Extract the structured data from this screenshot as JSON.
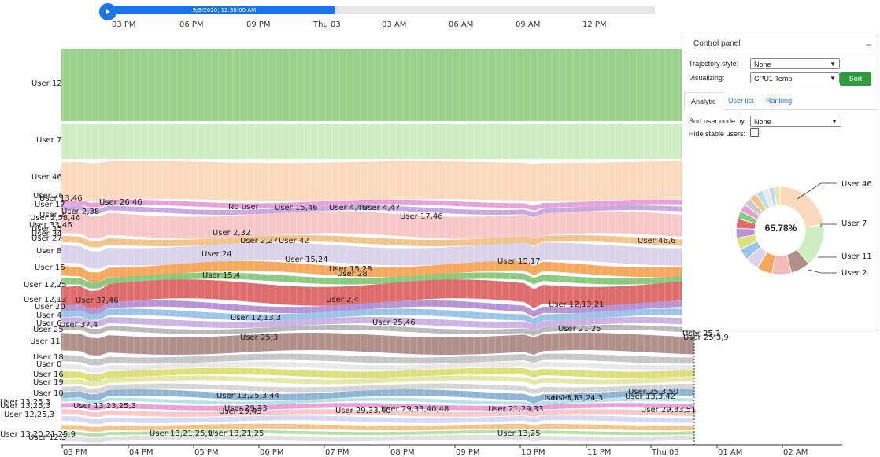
{
  "timeline": {
    "current_time": "9/3/2020, 12:30:00 AM",
    "progress": 0.41,
    "ticks": [
      "03 PM",
      "06 PM",
      "09 PM",
      "Thu 03",
      "03 AM",
      "06 AM",
      "09 AM",
      "12 PM"
    ]
  },
  "main_axis": {
    "ticks": [
      "03 PM",
      "04 PM",
      "05 PM",
      "06 PM",
      "07 PM",
      "08 PM",
      "09 PM",
      "10 PM",
      "11 PM",
      "Thu 03",
      "01 AM",
      "02 AM"
    ]
  },
  "left_labels": [
    "User 12",
    "User 7",
    "User 46",
    "User 26",
    "User 13,46",
    "User 17",
    "User 2",
    "User 33,46",
    "User 35",
    "User 34",
    "User 27",
    "User 8",
    "User 15",
    "User 12,25",
    "User 12,13",
    "User 20",
    "User 6",
    "User 4",
    "User 25",
    "User 11",
    "User 18",
    "User 0",
    "User 16",
    "User 19",
    "User 10",
    "User 13,25,3",
    "User 13,25,3",
    "User 12,25,3",
    "User 13,20,21,25,9",
    "User 12,3"
  ],
  "stream_labels": [
    "User 26,46",
    "No user",
    "User 15,46",
    "User 4,46",
    "User 4,47",
    "User 17,46",
    "User 2,32",
    "User 2,27",
    "User 42",
    "User 24",
    "User 15,24",
    "User 15,28",
    "User 28",
    "User 15,4",
    "User 15,17",
    "User 46,6",
    "User 2,4",
    "User 12,13,3",
    "User 25,46",
    "User 25,3",
    "User 12,13,21",
    "User 21,25",
    "User 13,25,3,44",
    "User 29,33",
    "User 29,43",
    "User 29,33,40",
    "User 29,33,40,48",
    "User 21,29,33",
    "User 13,23,25,3",
    "User 13,3",
    "User 13,24,3",
    "User 13,3,42",
    "User 25,3,50",
    "User 29,33,51",
    "User 13,21,25,9",
    "User 13,21,25",
    "User 13,25",
    "User 37,46",
    "User 37,4",
    "User 2,38",
    "User 2,58,46",
    "User 25,3",
    "User 25,3,9"
  ],
  "control_panel": {
    "title": "Control panel",
    "minimize": "–",
    "trajectory_label": "Trajectory style:",
    "trajectory_value": "None",
    "visualizing_label": "Visualizing:",
    "visualizing_value": "CPU1 Temp",
    "sort_button": "Sort",
    "tabs": [
      "Analytic",
      "User list",
      "Ranking"
    ],
    "sort_node_label": "Sort user node by:",
    "sort_node_value": "None",
    "hide_stable_label": "Hide stable users:",
    "donut_center": "65.78%",
    "donut_labels": [
      "User 46",
      "User 7",
      "User 11",
      "User 2"
    ]
  },
  "chart_data": {
    "type": "area",
    "title": "",
    "x_axis_ticks": [
      "03 PM",
      "04 PM",
      "05 PM",
      "06 PM",
      "07 PM",
      "08 PM",
      "09 PM",
      "10 PM",
      "11 PM",
      "Thu 03",
      "01 AM",
      "02 AM"
    ],
    "series": [
      {
        "name": "User 12",
        "color": "#9bd18a"
      },
      {
        "name": "User 7",
        "color": "#cdeec3"
      },
      {
        "name": "User 46",
        "color": "#fbd9bd"
      },
      {
        "name": "User 8",
        "color": "#dad3ea"
      },
      {
        "name": "User 15",
        "color": "#f6a85e"
      },
      {
        "name": "User 12,25",
        "color": "#df6c6c"
      },
      {
        "name": "User 11",
        "color": "#b09088"
      },
      {
        "name": "User 10",
        "color": "#8fb5d6"
      }
    ],
    "donut": {
      "center_value": "65.78%",
      "slices": [
        {
          "label": "User 46",
          "value": 0.16,
          "color": "#fbd9bd"
        },
        {
          "label": "User 7",
          "value": 0.11,
          "color": "#cdeec3"
        },
        {
          "label": "User 11",
          "value": 0.05,
          "color": "#b09088"
        },
        {
          "label": "User 2",
          "value": 0.05,
          "color": "#f4b9b9"
        }
      ]
    }
  }
}
